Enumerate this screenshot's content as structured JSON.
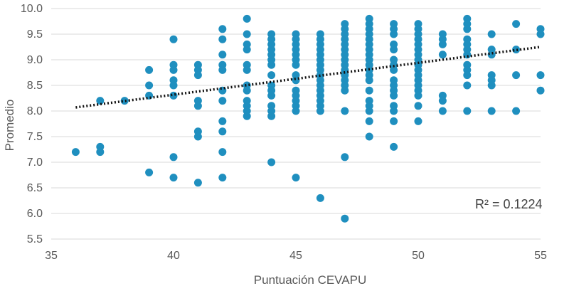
{
  "chart_data": {
    "type": "scatter",
    "title": "",
    "xlabel": "Puntuación CEVAPU",
    "ylabel": "Promedio",
    "xlim": [
      35,
      55
    ],
    "ylim": [
      5.5,
      10.0
    ],
    "x_ticks": [
      "35",
      "40",
      "45",
      "50",
      "55"
    ],
    "y_ticks": [
      "5.5",
      "6.0",
      "6.5",
      "7.0",
      "7.5",
      "8.0",
      "8.5",
      "9.0",
      "9.5",
      "10.0"
    ],
    "grid": "horizontal",
    "annotation": {
      "text": "R² = 0.1224"
    },
    "point_color": "#1f8fbf",
    "trendline_color": "#111111",
    "trendline": {
      "x": [
        36,
        55
      ],
      "y": [
        8.07,
        9.25
      ]
    },
    "points": [
      [
        36,
        7.2
      ],
      [
        37,
        8.2
      ],
      [
        37,
        7.3
      ],
      [
        37,
        7.2
      ],
      [
        38,
        8.2
      ],
      [
        39,
        8.8
      ],
      [
        39,
        8.5
      ],
      [
        39,
        8.3
      ],
      [
        39,
        6.8
      ],
      [
        40,
        9.4
      ],
      [
        40,
        8.9
      ],
      [
        40,
        8.8
      ],
      [
        40,
        8.6
      ],
      [
        40,
        8.5
      ],
      [
        40,
        8.3
      ],
      [
        40,
        7.1
      ],
      [
        40,
        6.7
      ],
      [
        41,
        8.9
      ],
      [
        41,
        8.8
      ],
      [
        41,
        8.7
      ],
      [
        41,
        8.2
      ],
      [
        41,
        8.1
      ],
      [
        41,
        7.6
      ],
      [
        41,
        7.5
      ],
      [
        41,
        6.6
      ],
      [
        42,
        9.6
      ],
      [
        42,
        9.4
      ],
      [
        42,
        9.1
      ],
      [
        42,
        8.9
      ],
      [
        42,
        8.8
      ],
      [
        42,
        8.4
      ],
      [
        42,
        8.2
      ],
      [
        42,
        7.8
      ],
      [
        42,
        7.6
      ],
      [
        42,
        7.2
      ],
      [
        42,
        6.7
      ],
      [
        43,
        9.8
      ],
      [
        43,
        9.5
      ],
      [
        43,
        9.3
      ],
      [
        43,
        9.2
      ],
      [
        43,
        8.9
      ],
      [
        43,
        8.8
      ],
      [
        43,
        8.5
      ],
      [
        43,
        8.4
      ],
      [
        43,
        8.2
      ],
      [
        43,
        8.1
      ],
      [
        43,
        8.0
      ],
      [
        43,
        7.9
      ],
      [
        44,
        9.5
      ],
      [
        44,
        9.4
      ],
      [
        44,
        9.3
      ],
      [
        44,
        9.2
      ],
      [
        44,
        9.1
      ],
      [
        44,
        9.0
      ],
      [
        44,
        8.9
      ],
      [
        44,
        8.7
      ],
      [
        44,
        8.5
      ],
      [
        44,
        8.4
      ],
      [
        44,
        8.3
      ],
      [
        44,
        8.1
      ],
      [
        44,
        8.0
      ],
      [
        44,
        7.9
      ],
      [
        44,
        7.0
      ],
      [
        45,
        9.5
      ],
      [
        45,
        9.4
      ],
      [
        45,
        9.3
      ],
      [
        45,
        9.2
      ],
      [
        45,
        9.1
      ],
      [
        45,
        9.0
      ],
      [
        45,
        8.9
      ],
      [
        45,
        8.7
      ],
      [
        45,
        8.6
      ],
      [
        45,
        8.4
      ],
      [
        45,
        8.3
      ],
      [
        45,
        8.2
      ],
      [
        45,
        8.1
      ],
      [
        45,
        8.0
      ],
      [
        45,
        6.7
      ],
      [
        46,
        9.5
      ],
      [
        46,
        9.4
      ],
      [
        46,
        9.3
      ],
      [
        46,
        9.2
      ],
      [
        46,
        9.1
      ],
      [
        46,
        9.0
      ],
      [
        46,
        8.9
      ],
      [
        46,
        8.8
      ],
      [
        46,
        8.7
      ],
      [
        46,
        8.6
      ],
      [
        46,
        8.5
      ],
      [
        46,
        8.4
      ],
      [
        46,
        8.3
      ],
      [
        46,
        8.2
      ],
      [
        46,
        8.1
      ],
      [
        46,
        8.0
      ],
      [
        46,
        6.3
      ],
      [
        47,
        9.7
      ],
      [
        47,
        9.6
      ],
      [
        47,
        9.5
      ],
      [
        47,
        9.4
      ],
      [
        47,
        9.3
      ],
      [
        47,
        9.2
      ],
      [
        47,
        9.1
      ],
      [
        47,
        9.0
      ],
      [
        47,
        8.9
      ],
      [
        47,
        8.8
      ],
      [
        47,
        8.7
      ],
      [
        47,
        8.6
      ],
      [
        47,
        8.5
      ],
      [
        47,
        8.4
      ],
      [
        47,
        8.0
      ],
      [
        47,
        7.1
      ],
      [
        47,
        5.9
      ],
      [
        48,
        9.8
      ],
      [
        48,
        9.7
      ],
      [
        48,
        9.6
      ],
      [
        48,
        9.5
      ],
      [
        48,
        9.4
      ],
      [
        48,
        9.3
      ],
      [
        48,
        9.2
      ],
      [
        48,
        9.1
      ],
      [
        48,
        9.0
      ],
      [
        48,
        8.9
      ],
      [
        48,
        8.8
      ],
      [
        48,
        8.7
      ],
      [
        48,
        8.6
      ],
      [
        48,
        8.4
      ],
      [
        48,
        8.2
      ],
      [
        48,
        8.1
      ],
      [
        48,
        8.0
      ],
      [
        48,
        7.8
      ],
      [
        48,
        7.5
      ],
      [
        49,
        9.7
      ],
      [
        49,
        9.6
      ],
      [
        49,
        9.5
      ],
      [
        49,
        9.3
      ],
      [
        49,
        9.2
      ],
      [
        49,
        9.0
      ],
      [
        49,
        8.9
      ],
      [
        49,
        8.8
      ],
      [
        49,
        8.6
      ],
      [
        49,
        8.5
      ],
      [
        49,
        8.4
      ],
      [
        49,
        8.3
      ],
      [
        49,
        8.1
      ],
      [
        49,
        8.0
      ],
      [
        49,
        7.8
      ],
      [
        49,
        7.3
      ],
      [
        50,
        9.7
      ],
      [
        50,
        9.6
      ],
      [
        50,
        9.5
      ],
      [
        50,
        9.4
      ],
      [
        50,
        9.3
      ],
      [
        50,
        9.2
      ],
      [
        50,
        9.1
      ],
      [
        50,
        9.0
      ],
      [
        50,
        8.9
      ],
      [
        50,
        8.8
      ],
      [
        50,
        8.7
      ],
      [
        50,
        8.6
      ],
      [
        50,
        8.5
      ],
      [
        50,
        8.4
      ],
      [
        50,
        8.3
      ],
      [
        50,
        8.1
      ],
      [
        50,
        7.8
      ],
      [
        51,
        9.5
      ],
      [
        51,
        9.4
      ],
      [
        51,
        9.3
      ],
      [
        51,
        9.1
      ],
      [
        51,
        8.3
      ],
      [
        51,
        8.2
      ],
      [
        51,
        8.0
      ],
      [
        52,
        9.8
      ],
      [
        52,
        9.7
      ],
      [
        52,
        9.6
      ],
      [
        52,
        9.4
      ],
      [
        52,
        9.3
      ],
      [
        52,
        9.2
      ],
      [
        52,
        9.1
      ],
      [
        52,
        8.9
      ],
      [
        52,
        8.8
      ],
      [
        52,
        8.7
      ],
      [
        52,
        8.5
      ],
      [
        52,
        8.0
      ],
      [
        53,
        9.5
      ],
      [
        53,
        9.2
      ],
      [
        53,
        9.1
      ],
      [
        53,
        8.7
      ],
      [
        53,
        8.6
      ],
      [
        53,
        8.5
      ],
      [
        53,
        8.0
      ],
      [
        54,
        9.7
      ],
      [
        54,
        9.2
      ],
      [
        54,
        8.7
      ],
      [
        54,
        8.0
      ],
      [
        55,
        9.6
      ],
      [
        55,
        9.5
      ],
      [
        55,
        8.7
      ],
      [
        55,
        8.4
      ]
    ]
  }
}
